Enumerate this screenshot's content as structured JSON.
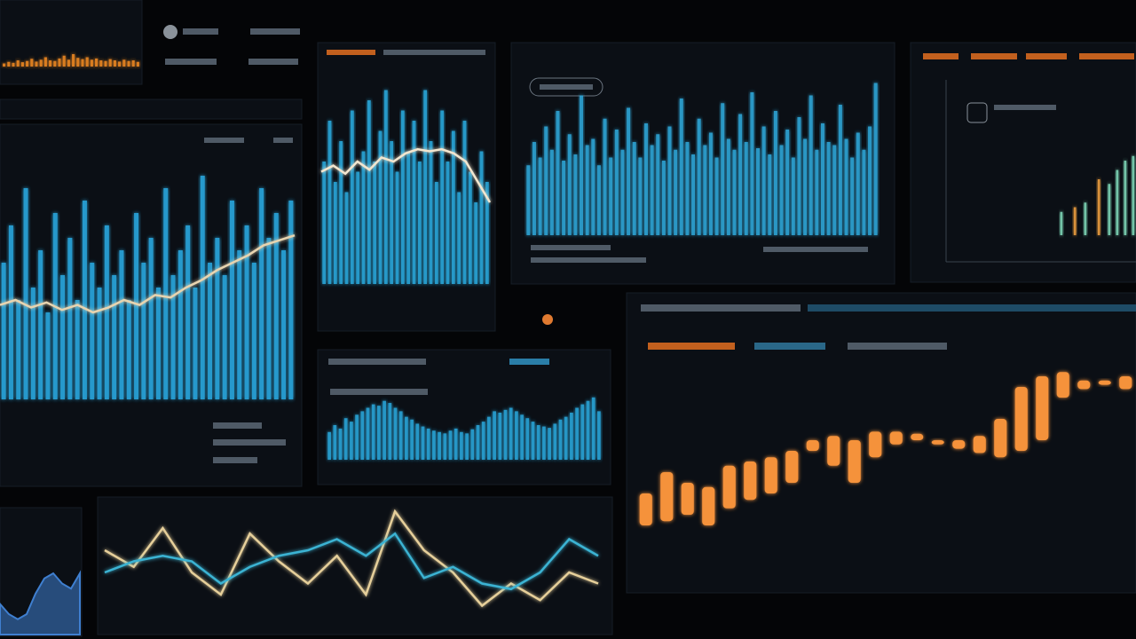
{
  "chart_data": [
    {
      "type": "bar",
      "ylim": [
        0,
        100
      ],
      "series": [
        {
          "color": "#f08a24",
          "values": [
            10,
            15,
            12,
            20,
            14,
            18,
            25,
            16,
            22,
            30,
            20,
            18,
            26,
            35,
            22,
            40,
            28,
            24,
            30,
            22,
            26,
            20,
            18,
            24,
            20,
            16,
            22,
            18,
            20,
            15
          ]
        }
      ]
    },
    {
      "type": "bar",
      "ylim": [
        0,
        100
      ],
      "series": [
        {
          "color": "#29a9e0",
          "values": [
            55,
            70,
            40,
            85,
            45,
            60,
            35,
            75,
            50,
            65,
            40,
            80,
            55,
            45,
            70,
            50,
            60,
            40,
            75,
            55,
            65,
            45,
            85,
            50,
            60,
            70,
            45,
            90,
            55,
            65,
            50,
            80,
            60,
            70,
            55,
            85,
            65,
            75,
            60,
            80
          ]
        }
      ]
    },
    {
      "type": "line",
      "ylim": [
        0,
        100
      ],
      "series": [
        {
          "color": "#e8d4b0",
          "values": [
            38,
            40,
            37,
            39,
            36,
            38,
            35,
            37,
            40,
            38,
            42,
            41,
            45,
            48,
            52,
            55,
            58,
            62,
            64,
            66
          ]
        }
      ]
    },
    {
      "type": "bar",
      "ylim": [
        0,
        100
      ],
      "series": [
        {
          "color": "#2aa8dc",
          "values": [
            60,
            80,
            50,
            70,
            45,
            85,
            55,
            65,
            90,
            60,
            75,
            95,
            70,
            55,
            85,
            65,
            80,
            60,
            95,
            70,
            50,
            85,
            60,
            75,
            45,
            80,
            55,
            40,
            65,
            50
          ]
        }
      ]
    },
    {
      "type": "line",
      "ylim": [
        0,
        100
      ],
      "series": [
        {
          "color": "#f3e6cf",
          "values": [
            55,
            58,
            54,
            60,
            56,
            62,
            60,
            64,
            66,
            65,
            66,
            64,
            60,
            50,
            40
          ]
        }
      ]
    },
    {
      "type": "bar",
      "ylim": [
        0,
        100
      ],
      "series": [
        {
          "color": "#2fa6d8",
          "values": [
            45,
            60,
            50,
            70,
            55,
            80,
            48,
            65,
            52,
            90,
            58,
            62,
            45,
            75,
            50,
            68,
            55,
            82,
            60,
            50,
            72,
            58,
            65,
            48,
            70,
            55,
            88,
            60,
            52,
            75,
            58,
            66,
            50,
            85,
            62,
            55,
            78,
            60,
            92,
            56,
            70,
            52,
            80,
            58,
            68,
            50,
            76,
            62,
            90,
            55,
            72,
            60,
            58,
            84,
            62,
            50,
            66,
            55,
            70,
            98
          ]
        }
      ]
    },
    {
      "type": "bar",
      "ylim": [
        0,
        100
      ],
      "series": [
        {
          "color": "#f0a040",
          "values": [
            null,
            null,
            30,
            null,
            null,
            60,
            null,
            null,
            null,
            null
          ]
        },
        {
          "color": "#7fd8b8",
          "values": [
            25,
            null,
            null,
            35,
            null,
            null,
            55,
            70,
            80,
            85
          ]
        }
      ]
    },
    {
      "type": "bar",
      "ylim": [
        0,
        100
      ],
      "series": [
        {
          "color": "#2aa6da",
          "values": [
            40,
            50,
            45,
            60,
            55,
            65,
            70,
            75,
            80,
            78,
            85,
            82,
            75,
            70,
            62,
            58,
            52,
            48,
            45,
            42,
            40,
            38,
            42,
            45,
            40,
            38,
            44,
            50,
            55,
            62,
            70,
            68,
            72,
            75,
            70,
            65,
            60,
            55,
            50,
            48,
            46,
            52,
            58,
            62,
            68,
            75,
            80,
            85,
            90,
            70
          ]
        }
      ]
    },
    {
      "type": "candlestick",
      "ylim": [
        0,
        100
      ],
      "color": "#f5923a",
      "open": [
        20,
        22,
        25,
        20,
        28,
        32,
        35,
        40,
        55,
        48,
        40,
        52,
        58,
        60,
        60,
        56,
        54,
        52,
        55,
        60,
        80,
        84,
        86,
        84
      ],
      "close": [
        35,
        45,
        40,
        38,
        48,
        50,
        52,
        55,
        60,
        62,
        60,
        64,
        64,
        63,
        58,
        60,
        62,
        70,
        85,
        90,
        92,
        88,
        88,
        90
      ],
      "high": [
        40,
        50,
        44,
        42,
        52,
        52,
        55,
        60,
        62,
        65,
        62,
        70,
        68,
        66,
        62,
        64,
        65,
        72,
        88,
        92,
        94,
        90,
        90,
        92
      ],
      "low": [
        15,
        10,
        22,
        18,
        25,
        30,
        33,
        30,
        52,
        45,
        38,
        50,
        50,
        57,
        56,
        52,
        52,
        50,
        52,
        58,
        78,
        82,
        84,
        82
      ]
    },
    {
      "type": "line",
      "ylim": [
        0,
        100
      ],
      "series": [
        {
          "color": "#e6cf9a",
          "values": [
            60,
            45,
            80,
            40,
            20,
            75,
            50,
            30,
            55,
            20,
            95,
            60,
            40,
            10,
            30,
            15,
            40,
            30
          ]
        },
        {
          "color": "#3bb3d3",
          "values": [
            40,
            50,
            55,
            50,
            30,
            45,
            55,
            60,
            70,
            55,
            75,
            35,
            45,
            30,
            25,
            40,
            70,
            55
          ]
        }
      ]
    },
    {
      "type": "area",
      "ylim": [
        0,
        100
      ],
      "series": [
        {
          "color": "#3f7fd0",
          "values": [
            30,
            20,
            15,
            20,
            40,
            55,
            60,
            50,
            45,
            60
          ]
        }
      ]
    }
  ]
}
